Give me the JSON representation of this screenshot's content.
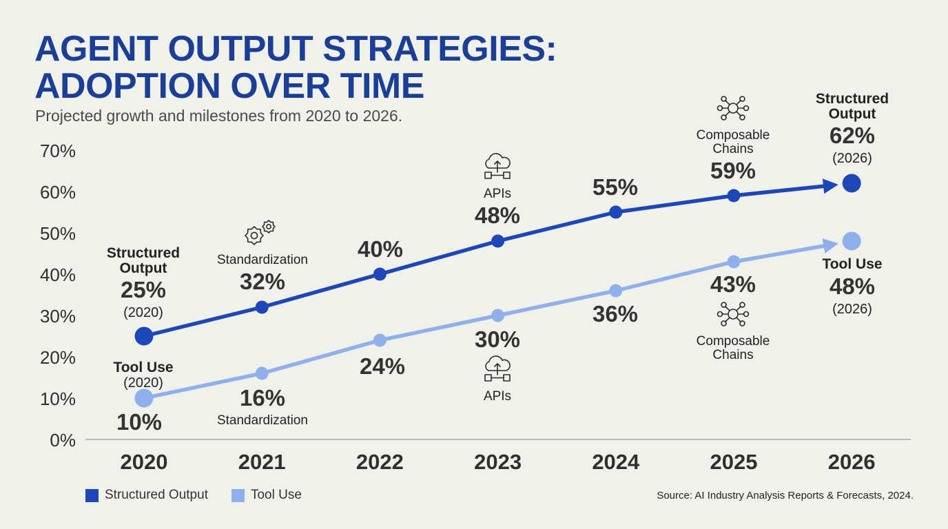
{
  "header": {
    "title_line1": "AGENT OUTPUT STRATEGIES:",
    "title_line2": "ADOPTION OVER TIME",
    "subtitle": "Projected growth and milestones from 2020 to 2026."
  },
  "source": "Source: AI Industry Analysis Reports & Forecasts, 2024.",
  "chart_data": {
    "type": "line",
    "x": [
      "2020",
      "2021",
      "2022",
      "2023",
      "2024",
      "2025",
      "2026"
    ],
    "ylim": [
      0,
      70
    ],
    "yticks": [
      "0%",
      "10%",
      "20%",
      "30%",
      "40%",
      "50%",
      "60%",
      "70%"
    ],
    "ytick_values": [
      0,
      10,
      20,
      30,
      40,
      50,
      60,
      70
    ],
    "grid": false,
    "legend_position": "bottom-left",
    "series": [
      {
        "name": "Structured Output",
        "color": "#1d47b8",
        "values": [
          25,
          32,
          40,
          48,
          55,
          59,
          62
        ],
        "labels": [
          "25%",
          "32%",
          "40%",
          "48%",
          "55%",
          "59%",
          "62%"
        ]
      },
      {
        "name": "Tool Use",
        "color": "#8fb0ea",
        "values": [
          10,
          16,
          24,
          30,
          36,
          43,
          48
        ],
        "labels": [
          "10%",
          "16%",
          "24%",
          "30%",
          "36%",
          "43%",
          "48%"
        ]
      }
    ],
    "annotations": {
      "start_structured": {
        "series_line1": "Structured",
        "series_line2": "Output",
        "value": "25%",
        "year": "(2020)"
      },
      "end_structured": {
        "series_line1": "Structured",
        "series_line2": "Output",
        "value": "62%",
        "year": "(2026)"
      },
      "start_tool": {
        "series": "Tool Use",
        "year": "(2020)"
      },
      "end_tool": {
        "series": "Tool Use",
        "value": "48%",
        "year": "(2026)"
      },
      "milestones": {
        "standardization": "Standardization",
        "apis": "APIs",
        "composable_line1": "Composable",
        "composable_line2": "Chains"
      },
      "icons": [
        "gears-icon",
        "cloud-network-icon",
        "hub-network-icon"
      ]
    }
  }
}
